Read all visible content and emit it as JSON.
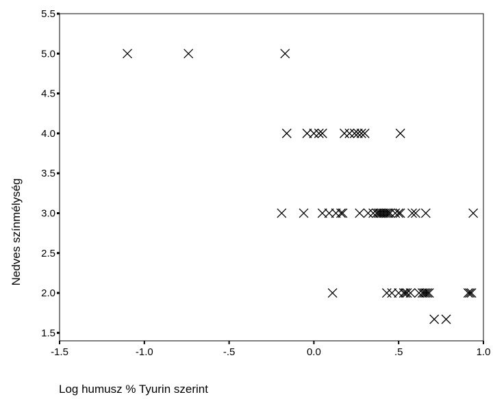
{
  "chart_data": {
    "type": "scatter",
    "title": "",
    "xlabel": "Log humusz % Tyurin szerint",
    "ylabel": "Nedves színmélység",
    "xlim": [
      -1.5,
      1.0
    ],
    "ylim": [
      1.4,
      5.5
    ],
    "x_ticks": [
      -1.5,
      -1.0,
      -0.5,
      0.0,
      0.5,
      1.0
    ],
    "x_tick_labels": [
      "-1.5",
      "-1.0",
      "-.5",
      "0.0",
      ".5",
      "1.0"
    ],
    "y_ticks": [
      1.5,
      2.0,
      2.5,
      3.0,
      3.5,
      4.0,
      4.5,
      5.0,
      5.5
    ],
    "y_tick_labels": [
      "1.5",
      "2.0",
      "2.5",
      "3.0",
      "3.5",
      "4.0",
      "4.5",
      "5.0",
      "5.5"
    ],
    "grid": false,
    "marker": "x",
    "points": [
      {
        "x": -1.1,
        "y": 5.0
      },
      {
        "x": -0.74,
        "y": 5.0
      },
      {
        "x": -0.17,
        "y": 5.0
      },
      {
        "x": -0.16,
        "y": 4.0
      },
      {
        "x": -0.04,
        "y": 4.0
      },
      {
        "x": 0.0,
        "y": 4.0
      },
      {
        "x": 0.03,
        "y": 4.0
      },
      {
        "x": 0.05,
        "y": 4.0
      },
      {
        "x": 0.18,
        "y": 4.0
      },
      {
        "x": 0.21,
        "y": 4.0
      },
      {
        "x": 0.24,
        "y": 4.0
      },
      {
        "x": 0.26,
        "y": 4.0
      },
      {
        "x": 0.28,
        "y": 4.0
      },
      {
        "x": 0.3,
        "y": 4.0
      },
      {
        "x": 0.51,
        "y": 4.0
      },
      {
        "x": -0.19,
        "y": 3.0
      },
      {
        "x": -0.06,
        "y": 3.0
      },
      {
        "x": 0.05,
        "y": 3.0
      },
      {
        "x": 0.09,
        "y": 3.0
      },
      {
        "x": 0.13,
        "y": 3.0
      },
      {
        "x": 0.16,
        "y": 3.0
      },
      {
        "x": 0.17,
        "y": 3.0
      },
      {
        "x": 0.27,
        "y": 3.0
      },
      {
        "x": 0.32,
        "y": 3.0
      },
      {
        "x": 0.35,
        "y": 3.0
      },
      {
        "x": 0.37,
        "y": 3.0
      },
      {
        "x": 0.38,
        "y": 3.0
      },
      {
        "x": 0.39,
        "y": 3.0
      },
      {
        "x": 0.4,
        "y": 3.0
      },
      {
        "x": 0.41,
        "y": 3.0
      },
      {
        "x": 0.42,
        "y": 3.0
      },
      {
        "x": 0.43,
        "y": 3.0
      },
      {
        "x": 0.44,
        "y": 3.0
      },
      {
        "x": 0.45,
        "y": 3.0
      },
      {
        "x": 0.48,
        "y": 3.0
      },
      {
        "x": 0.5,
        "y": 3.0
      },
      {
        "x": 0.51,
        "y": 3.0
      },
      {
        "x": 0.58,
        "y": 3.0
      },
      {
        "x": 0.6,
        "y": 3.0
      },
      {
        "x": 0.66,
        "y": 3.0
      },
      {
        "x": 0.94,
        "y": 3.0
      },
      {
        "x": 0.11,
        "y": 2.0
      },
      {
        "x": 0.43,
        "y": 2.0
      },
      {
        "x": 0.46,
        "y": 2.0
      },
      {
        "x": 0.5,
        "y": 2.0
      },
      {
        "x": 0.53,
        "y": 2.0
      },
      {
        "x": 0.54,
        "y": 2.0
      },
      {
        "x": 0.55,
        "y": 2.0
      },
      {
        "x": 0.57,
        "y": 2.0
      },
      {
        "x": 0.62,
        "y": 2.0
      },
      {
        "x": 0.64,
        "y": 2.0
      },
      {
        "x": 0.65,
        "y": 2.0
      },
      {
        "x": 0.66,
        "y": 2.0
      },
      {
        "x": 0.67,
        "y": 2.0
      },
      {
        "x": 0.68,
        "y": 2.0
      },
      {
        "x": 0.91,
        "y": 2.0
      },
      {
        "x": 0.92,
        "y": 2.0
      },
      {
        "x": 0.93,
        "y": 2.0
      },
      {
        "x": 0.71,
        "y": 1.67
      },
      {
        "x": 0.78,
        "y": 1.67
      }
    ]
  }
}
